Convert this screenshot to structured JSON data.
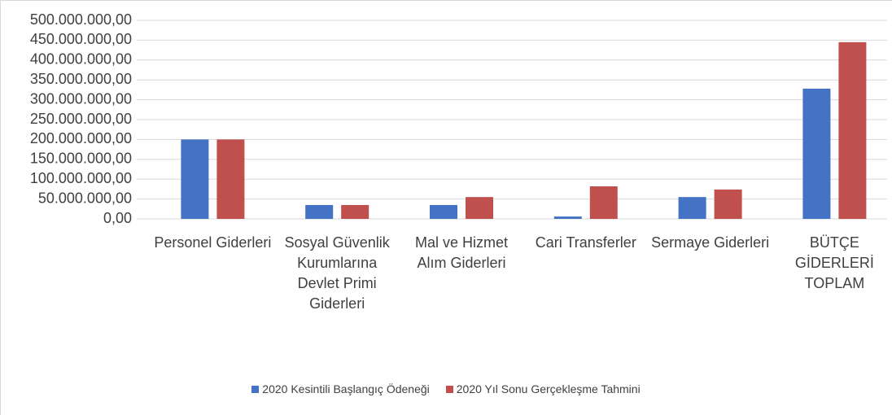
{
  "chart_data": {
    "type": "bar",
    "categories": [
      "Personel Giderleri",
      "Sosyal Güvenlik Kurumlarına Devlet Primi Giderleri",
      "Mal ve Hizmet Alım Giderleri",
      "Cari Transferler",
      "Sermaye Giderleri",
      "BÜTÇE GİDERLERİ TOPLAM"
    ],
    "series": [
      {
        "name": "2020 Kesintili Başlangıç Ödeneği",
        "color": "#4472c4",
        "values": [
          200000000,
          35000000,
          35000000,
          6000000,
          55000000,
          328000000
        ]
      },
      {
        "name": "2020 Yıl Sonu Gerçekleşme Tahmini",
        "color": "#c0504d",
        "values": [
          200000000,
          35000000,
          55000000,
          82000000,
          74000000,
          445000000
        ]
      }
    ],
    "ylim": [
      0,
      500000000
    ],
    "yticks": [
      {
        "value": 0,
        "label": "0,00"
      },
      {
        "value": 50000000,
        "label": "50.000.000,00"
      },
      {
        "value": 100000000,
        "label": "100.000.000,00"
      },
      {
        "value": 150000000,
        "label": "150.000.000,00"
      },
      {
        "value": 200000000,
        "label": "200.000.000,00"
      },
      {
        "value": 250000000,
        "label": "250.000.000,00"
      },
      {
        "value": 300000000,
        "label": "300.000.000,00"
      },
      {
        "value": 350000000,
        "label": "350.000.000,00"
      },
      {
        "value": 400000000,
        "label": "400.000.000,00"
      },
      {
        "value": 450000000,
        "label": "450.000.000,00"
      },
      {
        "value": 500000000,
        "label": "500.000.000,00"
      }
    ],
    "grid": true,
    "legend": "bottom"
  }
}
